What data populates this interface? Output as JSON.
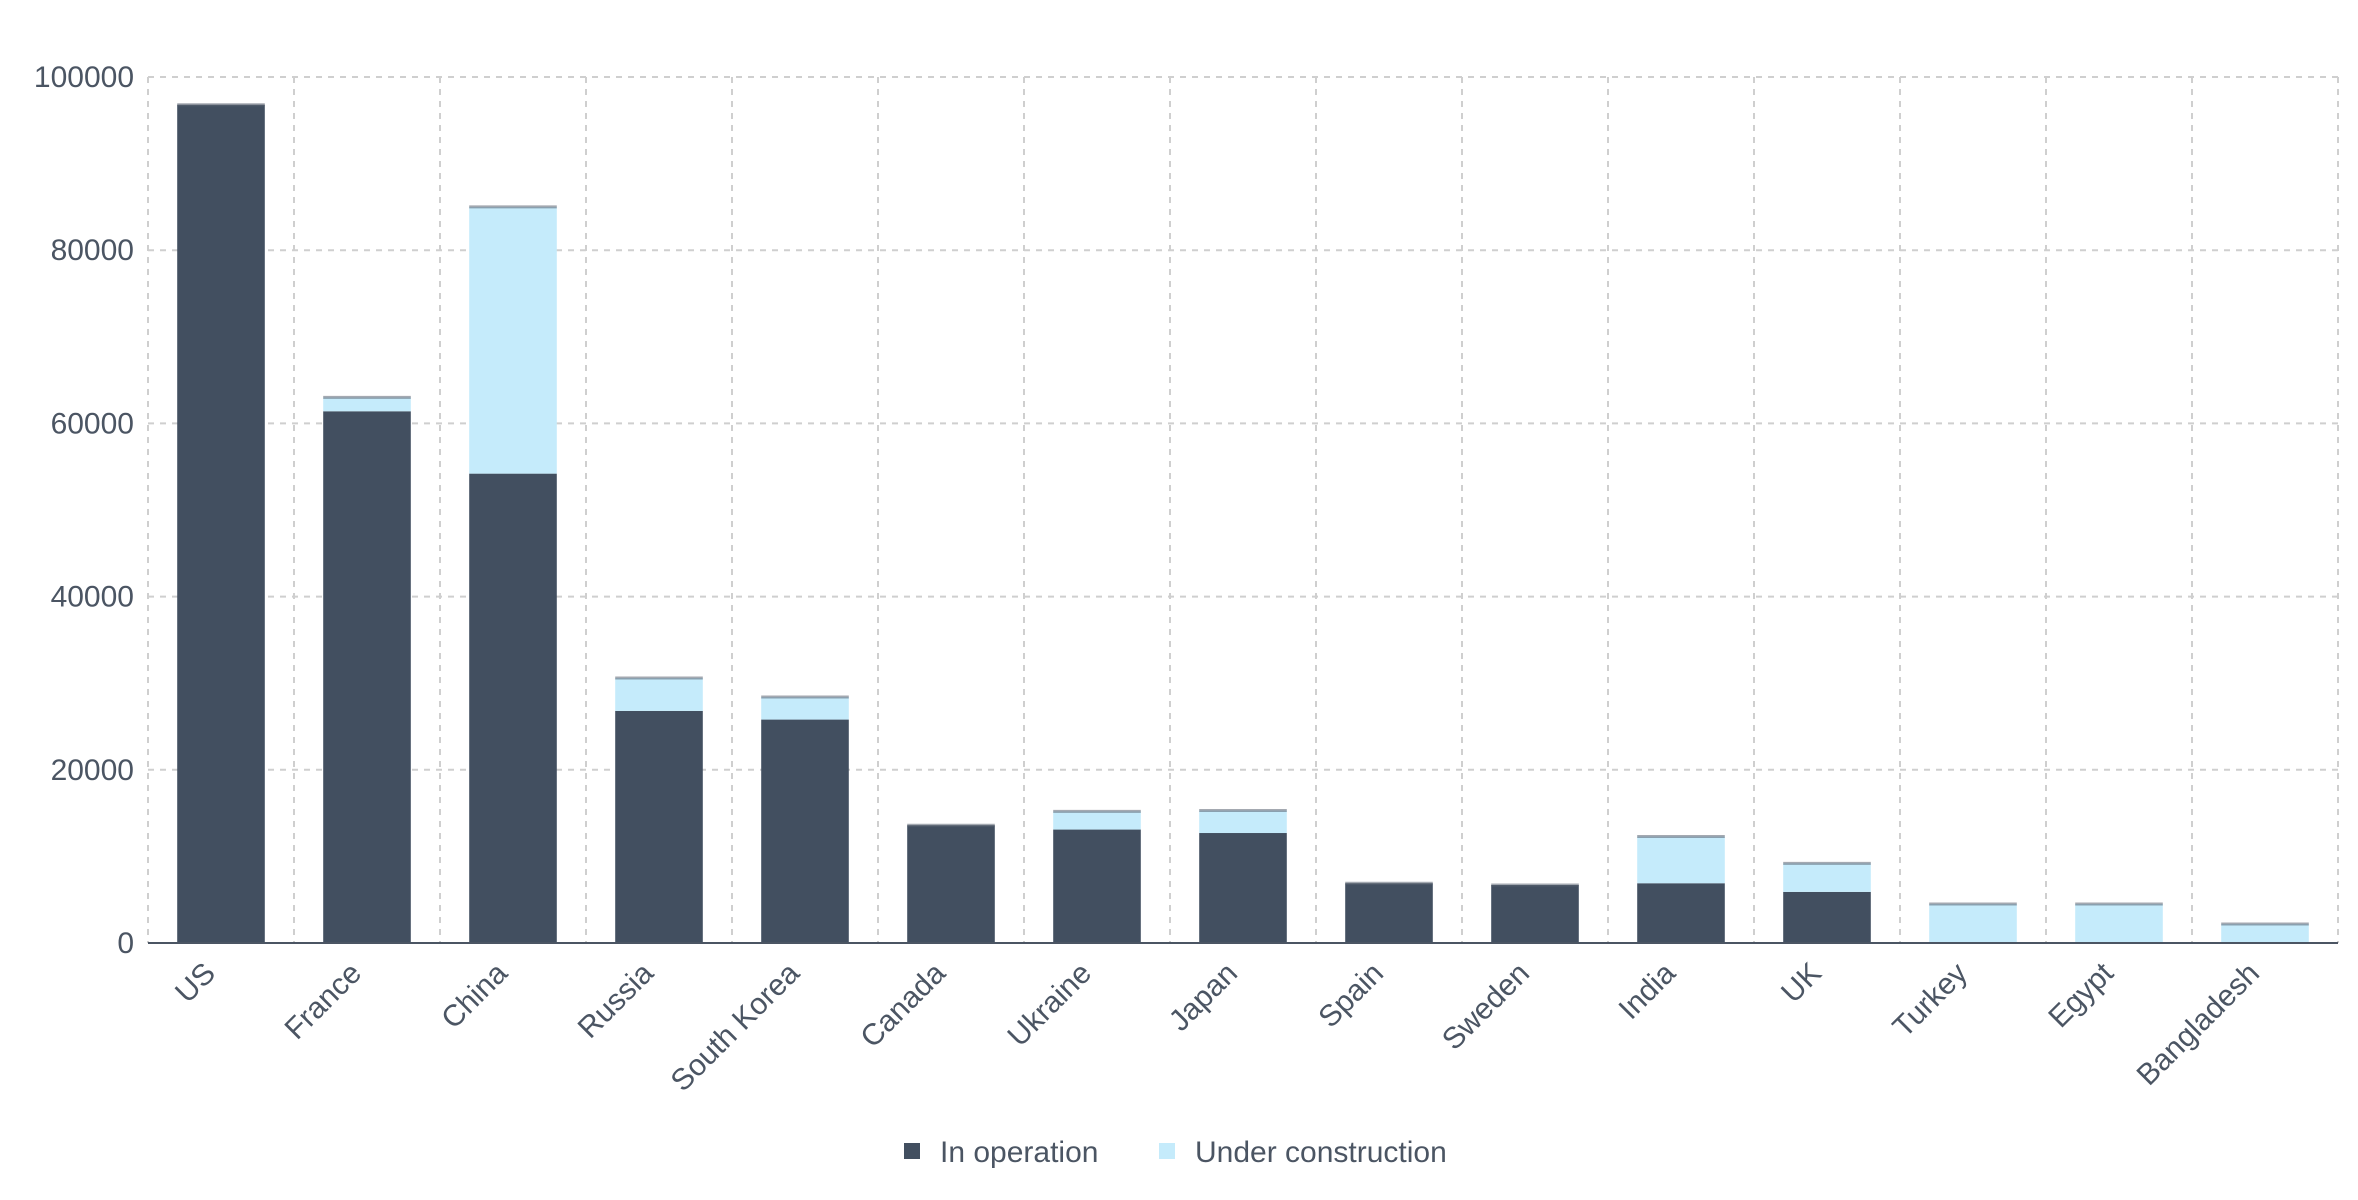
{
  "chart_data": {
    "type": "bar",
    "stacked": true,
    "title": "",
    "xlabel": "",
    "ylabel": "",
    "ylim": [
      0,
      100000
    ],
    "yticks": [
      0,
      20000,
      40000,
      60000,
      80000,
      100000
    ],
    "grid": true,
    "legend_position": "bottom-center",
    "categories": [
      "US",
      "France",
      "China",
      "Russia",
      "South Korea",
      "Canada",
      "Ukraine",
      "Japan",
      "Spain",
      "Sweden",
      "India",
      "UK",
      "Turkey",
      "Egypt",
      "Bangladesh"
    ],
    "series": [
      {
        "name": "In operation",
        "color": "#424f60",
        "values": [
          96800,
          61400,
          54200,
          26800,
          25800,
          13600,
          13100,
          12700,
          6900,
          6700,
          6900,
          5900,
          0,
          0,
          0
        ]
      },
      {
        "name": "Under construction",
        "color": "#c5ebfb",
        "values": [
          0,
          1600,
          30800,
          3800,
          2600,
          0,
          2100,
          2600,
          0,
          0,
          5400,
          3300,
          4500,
          4500,
          2200
        ]
      }
    ]
  }
}
